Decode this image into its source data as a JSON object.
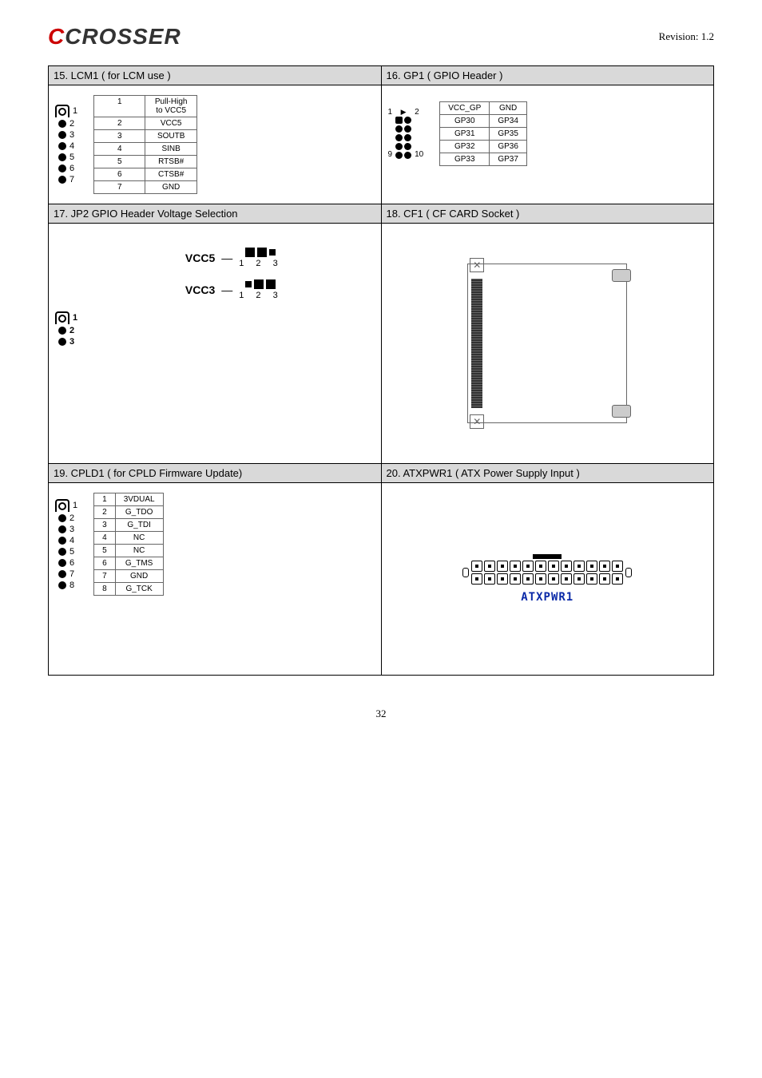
{
  "revision": "Revision: 1.2",
  "logo_black": "CROSSER",
  "page_number": "32",
  "sec15": {
    "title": "15. LCM1 ( for LCM use )",
    "pins": [
      {
        "n": "1",
        "sig": "Pull-High to VCC5"
      },
      {
        "n": "2",
        "sig": "VCC5"
      },
      {
        "n": "3",
        "sig": "SOUTB"
      },
      {
        "n": "4",
        "sig": "SINB"
      },
      {
        "n": "5",
        "sig": "RTSB#"
      },
      {
        "n": "6",
        "sig": "CTSB#"
      },
      {
        "n": "7",
        "sig": "GND"
      }
    ]
  },
  "sec16": {
    "title": "16. GP1 ( GPIO Header )",
    "rows": [
      {
        "l": "VCC_GP",
        "r": "GND"
      },
      {
        "l": "GP30",
        "r": "GP34"
      },
      {
        "l": "GP31",
        "r": "GP35"
      },
      {
        "l": "GP32",
        "r": "GP36"
      },
      {
        "l": "GP33",
        "r": "GP37"
      }
    ],
    "corner_tl": "1",
    "corner_tr": "2",
    "corner_bl": "9",
    "corner_br": "10"
  },
  "sec17": {
    "title": "17. JP2 GPIO Header Voltage Selection",
    "vcc5": "VCC5",
    "vcc3": "VCC3",
    "nums": "1 2 3",
    "jp_labels": [
      "1",
      "2",
      "3"
    ]
  },
  "sec18": {
    "title": "18. CF1 ( CF CARD Socket )"
  },
  "sec19": {
    "title": "19. CPLD1 ( for CPLD Firmware Update)",
    "pins": [
      {
        "n": "1",
        "sig": "3VDUAL"
      },
      {
        "n": "2",
        "sig": "G_TDO"
      },
      {
        "n": "3",
        "sig": "G_TDI"
      },
      {
        "n": "4",
        "sig": "NC"
      },
      {
        "n": "5",
        "sig": "NC"
      },
      {
        "n": "6",
        "sig": "G_TMS"
      },
      {
        "n": "7",
        "sig": "GND"
      },
      {
        "n": "8",
        "sig": "G_TCK"
      }
    ]
  },
  "sec20": {
    "title": "20. ATXPWR1 ( ATX Power Supply Input )",
    "label": "ATXPWR1",
    "cols": 12
  }
}
